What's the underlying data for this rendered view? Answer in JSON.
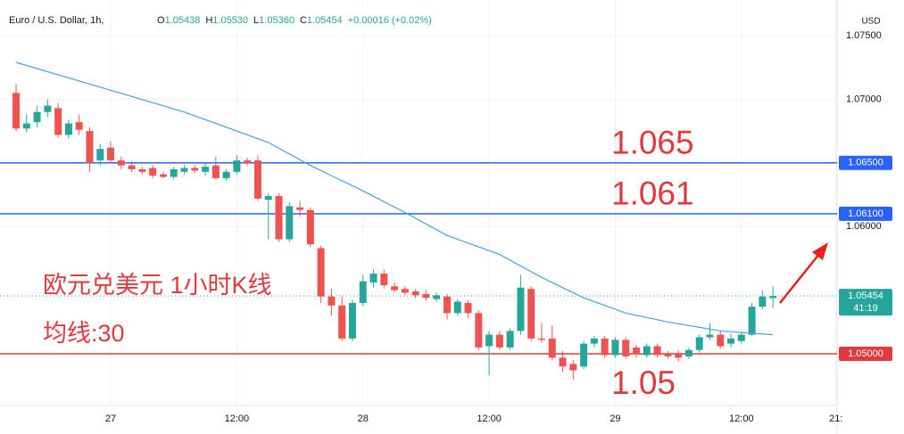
{
  "chart_data": {
    "type": "candlestick",
    "title": "Euro / U.S. Dollar, 1h,",
    "legend_values": [
      {
        "key": "O",
        "value": "1.05438"
      },
      {
        "key": "H",
        "value": "1.05530"
      },
      {
        "key": "L",
        "value": "1.05360"
      },
      {
        "key": "C",
        "value": "1.05454"
      }
    ],
    "change": "+0.00016 (+0.02%)",
    "currency": "USD",
    "up_color": "#26a69a",
    "down_color": "#ef5350",
    "open": [
      1.0705,
      1.0677,
      1.0682,
      1.069,
      1.0693,
      1.0672,
      1.0682,
      1.0675,
      1.0652,
      1.0662,
      1.0652,
      1.0648,
      1.0645,
      1.0646,
      1.0641,
      1.0639,
      1.0643,
      1.0646,
      1.0643,
      1.0648,
      1.0638,
      1.0643,
      1.0652,
      1.0652,
      1.0621,
      1.0624,
      1.059,
      1.0615,
      1.0613,
      1.0583,
      1.0545,
      1.0538,
      1.0512,
      1.054,
      1.0556,
      1.0563,
      1.0553,
      1.0551,
      1.0549,
      1.0547,
      1.0543,
      1.0545,
      1.0532,
      1.054,
      1.0532,
      1.0506,
      1.0515,
      1.0505,
      1.0518,
      1.0551,
      1.0512,
      1.0512,
      1.0497,
      1.0492,
      1.049,
      1.0508,
      1.0512,
      1.0499,
      1.0511,
      1.0505,
      1.0499,
      1.0506,
      1.05,
      1.05,
      1.0498,
      1.0503,
      1.0513,
      1.0515,
      1.0508,
      1.051,
      1.0515,
      1.0537,
      1.05438
    ],
    "high": [
      1.0712,
      1.0688,
      1.0695,
      1.07,
      1.0697,
      1.0684,
      1.0688,
      1.0678,
      1.0665,
      1.0667,
      1.0655,
      1.0651,
      1.0647,
      1.0648,
      1.0643,
      1.0647,
      1.0648,
      1.0648,
      1.065,
      1.0655,
      1.0645,
      1.0656,
      1.0654,
      1.0656,
      1.0626,
      1.0626,
      1.0619,
      1.062,
      1.0615,
      1.0585,
      1.0551,
      1.0545,
      1.0542,
      1.0562,
      1.0566,
      1.0566,
      1.0556,
      1.0553,
      1.0551,
      1.055,
      1.0548,
      1.0547,
      1.0543,
      1.0542,
      1.0534,
      1.0518,
      1.0518,
      1.052,
      1.0562,
      1.0553,
      1.0524,
      1.0522,
      1.0502,
      1.0495,
      1.051,
      1.0514,
      1.0514,
      1.0513,
      1.0513,
      1.0507,
      1.0508,
      1.0508,
      1.0502,
      1.0503,
      1.0505,
      1.0515,
      1.0524,
      1.0518,
      1.0516,
      1.0517,
      1.054,
      1.055,
      1.0553
    ],
    "low": [
      1.0675,
      1.0674,
      1.0678,
      1.0686,
      1.067,
      1.0669,
      1.0672,
      1.0643,
      1.0648,
      1.065,
      1.0645,
      1.0643,
      1.0641,
      1.0638,
      1.0638,
      1.0637,
      1.0641,
      1.0642,
      1.064,
      1.0637,
      1.0636,
      1.0641,
      1.0648,
      1.062,
      1.059,
      1.0588,
      1.0588,
      1.0608,
      1.0584,
      1.054,
      1.053,
      1.051,
      1.051,
      1.0538,
      1.0552,
      1.0552,
      1.0548,
      1.0546,
      1.0544,
      1.0542,
      1.0541,
      1.0527,
      1.053,
      1.0528,
      1.0503,
      1.0483,
      1.0503,
      1.0503,
      1.0515,
      1.051,
      1.0509,
      1.0495,
      1.0486,
      1.048,
      1.0488,
      1.0505,
      1.0497,
      1.0497,
      1.0496,
      1.0497,
      1.0497,
      1.0497,
      1.0496,
      1.0494,
      1.0496,
      1.0501,
      1.0511,
      1.0504,
      1.0505,
      1.0508,
      1.0514,
      1.0535,
      1.0536
    ],
    "close": [
      1.0677,
      1.0681,
      1.069,
      1.0695,
      1.0672,
      1.0681,
      1.0676,
      1.065,
      1.0661,
      1.0652,
      1.0648,
      1.0645,
      1.0643,
      1.064,
      1.0639,
      1.0645,
      1.0646,
      1.0644,
      1.0647,
      1.0638,
      1.0643,
      1.0652,
      1.065,
      1.0622,
      1.0624,
      1.059,
      1.0616,
      1.0613,
      1.0586,
      1.0545,
      1.0538,
      1.0512,
      1.054,
      1.0557,
      1.0563,
      1.0554,
      1.055,
      1.0548,
      1.0546,
      1.0544,
      1.0546,
      1.0532,
      1.0541,
      1.0532,
      1.0505,
      1.0515,
      1.0505,
      1.0518,
      1.0552,
      1.0512,
      1.0511,
      1.0497,
      1.049,
      1.0487,
      1.0508,
      1.0512,
      1.0499,
      1.0511,
      1.0498,
      1.05,
      1.0506,
      1.0499,
      1.0498,
      1.0497,
      1.0503,
      1.0513,
      1.0515,
      1.0506,
      1.0512,
      1.0515,
      1.0537,
      1.0545,
      1.05454
    ],
    "ma": {
      "color": "#4a9fe3",
      "x": [
        0,
        7,
        16,
        24,
        28,
        33,
        37,
        41,
        46,
        50,
        54,
        58,
        62,
        67,
        72
      ],
      "values": [
        1.0729,
        1.0712,
        1.069,
        1.0666,
        1.0648,
        1.0628,
        1.0611,
        1.0593,
        1.0578,
        1.056,
        1.0544,
        1.0532,
        1.0525,
        1.0518,
        1.0515
      ]
    },
    "xlim": [
      -1.53,
      78.1
    ],
    "xticks": [
      {
        "value": 9,
        "label": "27"
      },
      {
        "value": 21,
        "label": "12:00"
      },
      {
        "value": 33,
        "label": "28"
      },
      {
        "value": 45,
        "label": "12:00"
      },
      {
        "value": 57,
        "label": "29"
      },
      {
        "value": 69,
        "label": "12:00"
      },
      {
        "value": 78,
        "label": "21:"
      }
    ],
    "ylim": [
      1.04594,
      1.0778
    ],
    "yticks": [
      {
        "value": 1.075,
        "label": "1.07500"
      },
      {
        "value": 1.07,
        "label": "1.07000"
      },
      {
        "value": 1.06,
        "label": "1.06000"
      }
    ],
    "grid": true,
    "hlines": [
      {
        "value": 1.065,
        "color": "#2962ff",
        "axis_label": "1.06500",
        "annotation": "1.065"
      },
      {
        "value": 1.061,
        "color": "#2962ff",
        "axis_label": "1.06100",
        "annotation": "1.061"
      },
      {
        "value": 1.05,
        "color": "#e03a3e",
        "axis_label": "1.05000",
        "annotation": "1.05"
      }
    ],
    "last_price": {
      "value": 1.05454,
      "label": "1.05454",
      "countdown": "41:19",
      "color": "#26a69a"
    },
    "annotations": [
      "欧元兑美元 1小时K线",
      "均线:30"
    ]
  }
}
